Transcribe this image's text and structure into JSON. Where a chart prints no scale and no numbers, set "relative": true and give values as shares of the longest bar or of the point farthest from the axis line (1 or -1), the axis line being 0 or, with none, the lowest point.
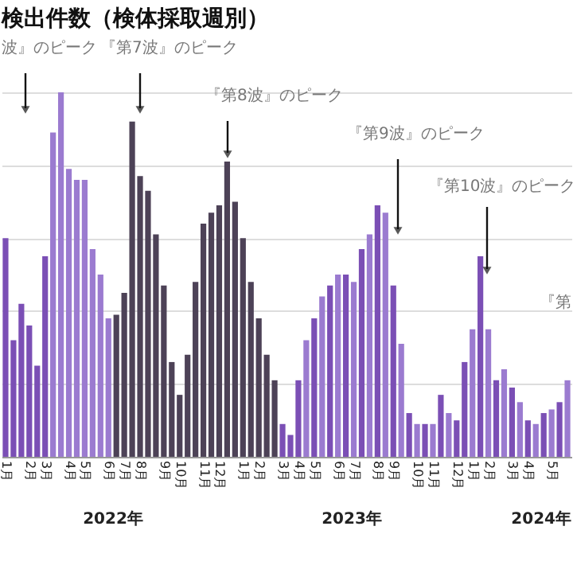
{
  "chart_data": {
    "type": "bar",
    "relative": true,
    "grid": "y",
    "categories": [
      "1月",
      null,
      null,
      "2月",
      null,
      "3月",
      null,
      null,
      "4月",
      null,
      "5月",
      null,
      null,
      "6月",
      null,
      "7月",
      null,
      "8月",
      null,
      null,
      "9月",
      null,
      "10月",
      null,
      null,
      "11月",
      null,
      "12月",
      null,
      null,
      "1月",
      null,
      "2月",
      null,
      null,
      "3月",
      null,
      "4月",
      null,
      "5月",
      null,
      null,
      "6月",
      null,
      "7月",
      null,
      null,
      "8月",
      null,
      "9月",
      null,
      null,
      "10月",
      null,
      "11月",
      null,
      null,
      "12月",
      null,
      "1月",
      null,
      "2月",
      null,
      null,
      "3月",
      null,
      "4月",
      null,
      null,
      "5月",
      null,
      null
    ],
    "values": [
      0.6,
      0.32,
      0.42,
      0.36,
      0.25,
      0.55,
      0.89,
      1.0,
      0.79,
      0.76,
      0.76,
      0.57,
      0.5,
      0.38,
      0.39,
      0.45,
      0.92,
      0.77,
      0.73,
      0.61,
      0.47,
      0.26,
      0.17,
      0.28,
      0.48,
      0.64,
      0.67,
      0.69,
      0.81,
      0.7,
      0.6,
      0.48,
      0.38,
      0.28,
      0.21,
      0.09,
      0.06,
      0.21,
      0.32,
      0.38,
      0.44,
      0.47,
      0.5,
      0.5,
      0.48,
      0.57,
      0.61,
      0.69,
      0.67,
      0.47,
      0.31,
      0.12,
      0.09,
      0.09,
      0.09,
      0.17,
      0.12,
      0.1,
      0.26,
      0.35,
      0.55,
      0.35,
      0.21,
      0.24,
      0.19,
      0.15,
      0.1,
      0.09,
      0.12,
      0.13,
      0.15,
      0.21
    ],
    "colors": [
      "#7b4fb5",
      "#7b4fb5",
      "#7b4fb5",
      "#7b4fb5",
      "#7b4fb5",
      "#7b4fb5",
      "#9b7bd0",
      "#9b7bd0",
      "#9b7bd0",
      "#9b7bd0",
      "#9b7bd0",
      "#9b7bd0",
      "#9b7bd0",
      "#9b7bd0",
      "#4d4257",
      "#4d4257",
      "#4d4257",
      "#4d4257",
      "#4d4257",
      "#4d4257",
      "#4d4257",
      "#4d4257",
      "#4d4257",
      "#4d4257",
      "#4d4257",
      "#4d4257",
      "#4d4257",
      "#4d4257",
      "#4d4257",
      "#4d4257",
      "#4d4257",
      "#4d4257",
      "#4d4257",
      "#4d4257",
      "#4d4257",
      "#7b4fb5",
      "#7b4fb5",
      "#7b4fb5",
      "#9b7bd0",
      "#7b4fb5",
      "#9b7bd0",
      "#7b4fb5",
      "#9b7bd0",
      "#7b4fb5",
      "#9b7bd0",
      "#7b4fb5",
      "#9b7bd0",
      "#7b4fb5",
      "#9b7bd0",
      "#7b4fb5",
      "#9b7bd0",
      "#7b4fb5",
      "#9b7bd0",
      "#7b4fb5",
      "#9b7bd0",
      "#7b4fb5",
      "#9b7bd0",
      "#7b4fb5",
      "#7b4fb5",
      "#9b7bd0",
      "#7b4fb5",
      "#9b7bd0",
      "#7b4fb5",
      "#9b7bd0",
      "#7b4fb5",
      "#9b7bd0",
      "#7b4fb5",
      "#9b7bd0",
      "#7b4fb5",
      "#9b7bd0",
      "#7b4fb5",
      "#9b7bd0"
    ],
    "title": "検出件数（検体採取週別）",
    "annotations": [
      "波』のピーク",
      "『第7波』のピーク",
      "『第8波』のピーク",
      "『第9波』のピーク",
      "『第10波』のピーク",
      "『第",
      "2022年",
      "2023年",
      "2024年"
    ]
  }
}
